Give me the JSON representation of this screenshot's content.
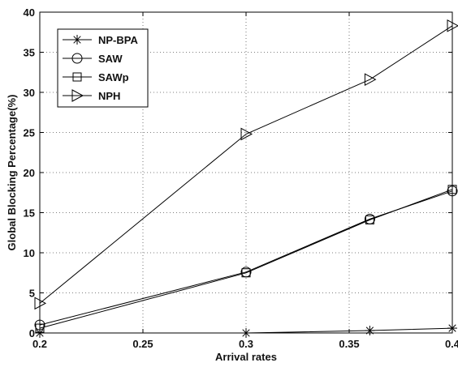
{
  "chart_data": {
    "type": "line",
    "title": "",
    "xlabel": "Arrival rates",
    "ylabel": "Global Blocking Percentage(%)",
    "xlim": [
      0.2,
      0.4
    ],
    "ylim": [
      0,
      40
    ],
    "xticks": [
      0.2,
      0.25,
      0.3,
      0.35,
      0.4
    ],
    "yticks": [
      0,
      5,
      10,
      15,
      20,
      25,
      30,
      35,
      40
    ],
    "xtick_labels": [
      "0.2",
      "0.25",
      "0.3",
      "0.35",
      "0.4"
    ],
    "ytick_labels": [
      "0",
      "5",
      "10",
      "15",
      "20",
      "25",
      "30",
      "35",
      "40"
    ],
    "grid": true,
    "legend_position": "top-left",
    "series": [
      {
        "name": "NP-BPA",
        "marker": "asterisk",
        "x": [
          0.2,
          0.3,
          0.36,
          0.4
        ],
        "y": [
          0.0,
          0.0,
          0.3,
          0.6
        ]
      },
      {
        "name": "SAW",
        "marker": "circle",
        "x": [
          0.2,
          0.3,
          0.36,
          0.4
        ],
        "y": [
          1.0,
          7.6,
          14.2,
          17.7
        ]
      },
      {
        "name": "SAWp",
        "marker": "square",
        "x": [
          0.2,
          0.3,
          0.36,
          0.4
        ],
        "y": [
          0.6,
          7.5,
          14.1,
          17.9
        ]
      },
      {
        "name": "NPH",
        "marker": "triangle-right",
        "x": [
          0.2,
          0.3,
          0.36,
          0.4
        ],
        "y": [
          3.7,
          24.8,
          31.6,
          38.3
        ]
      }
    ],
    "colors": {
      "line": "#000000",
      "grid": "#555555",
      "background": "#ffffff"
    }
  }
}
